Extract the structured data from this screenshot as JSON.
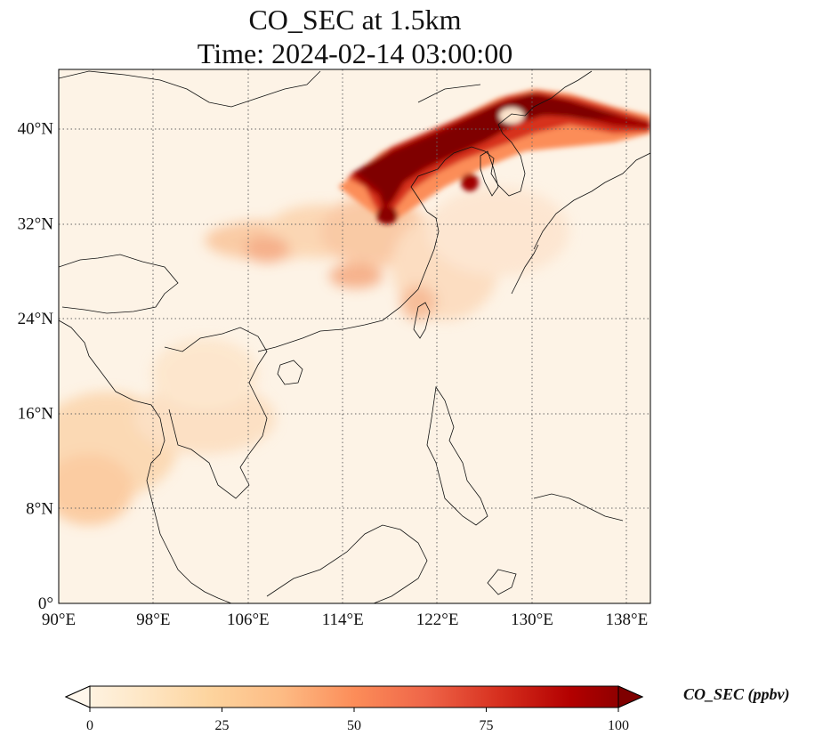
{
  "title_line1": "CO_SEC at 1.5km",
  "title_line2": "Time: 2024-02-14 03:00:00",
  "map": {
    "lon_range": [
      90,
      140
    ],
    "lat_range": [
      0,
      45
    ],
    "lon_ticks": [
      "90°E",
      "98°E",
      "106°E",
      "114°E",
      "122°E",
      "130°E",
      "138°E"
    ],
    "lat_ticks": [
      "0°",
      "8°N",
      "16°N",
      "24°N",
      "32°N",
      "40°N"
    ],
    "gridlines": "dotted gray"
  },
  "colorbar": {
    "title": "CO_SEC (ppbv)",
    "ticks": [
      "0",
      "25",
      "50",
      "75",
      "100"
    ],
    "range": [
      0,
      100
    ],
    "colormap": "OrRd",
    "extend": "both",
    "colors": [
      "#fff7ec",
      "#fee8c8",
      "#fdd49e",
      "#fdbb84",
      "#fc8d59",
      "#ef6548",
      "#d7301f",
      "#b30000",
      "#7f0000"
    ]
  }
}
